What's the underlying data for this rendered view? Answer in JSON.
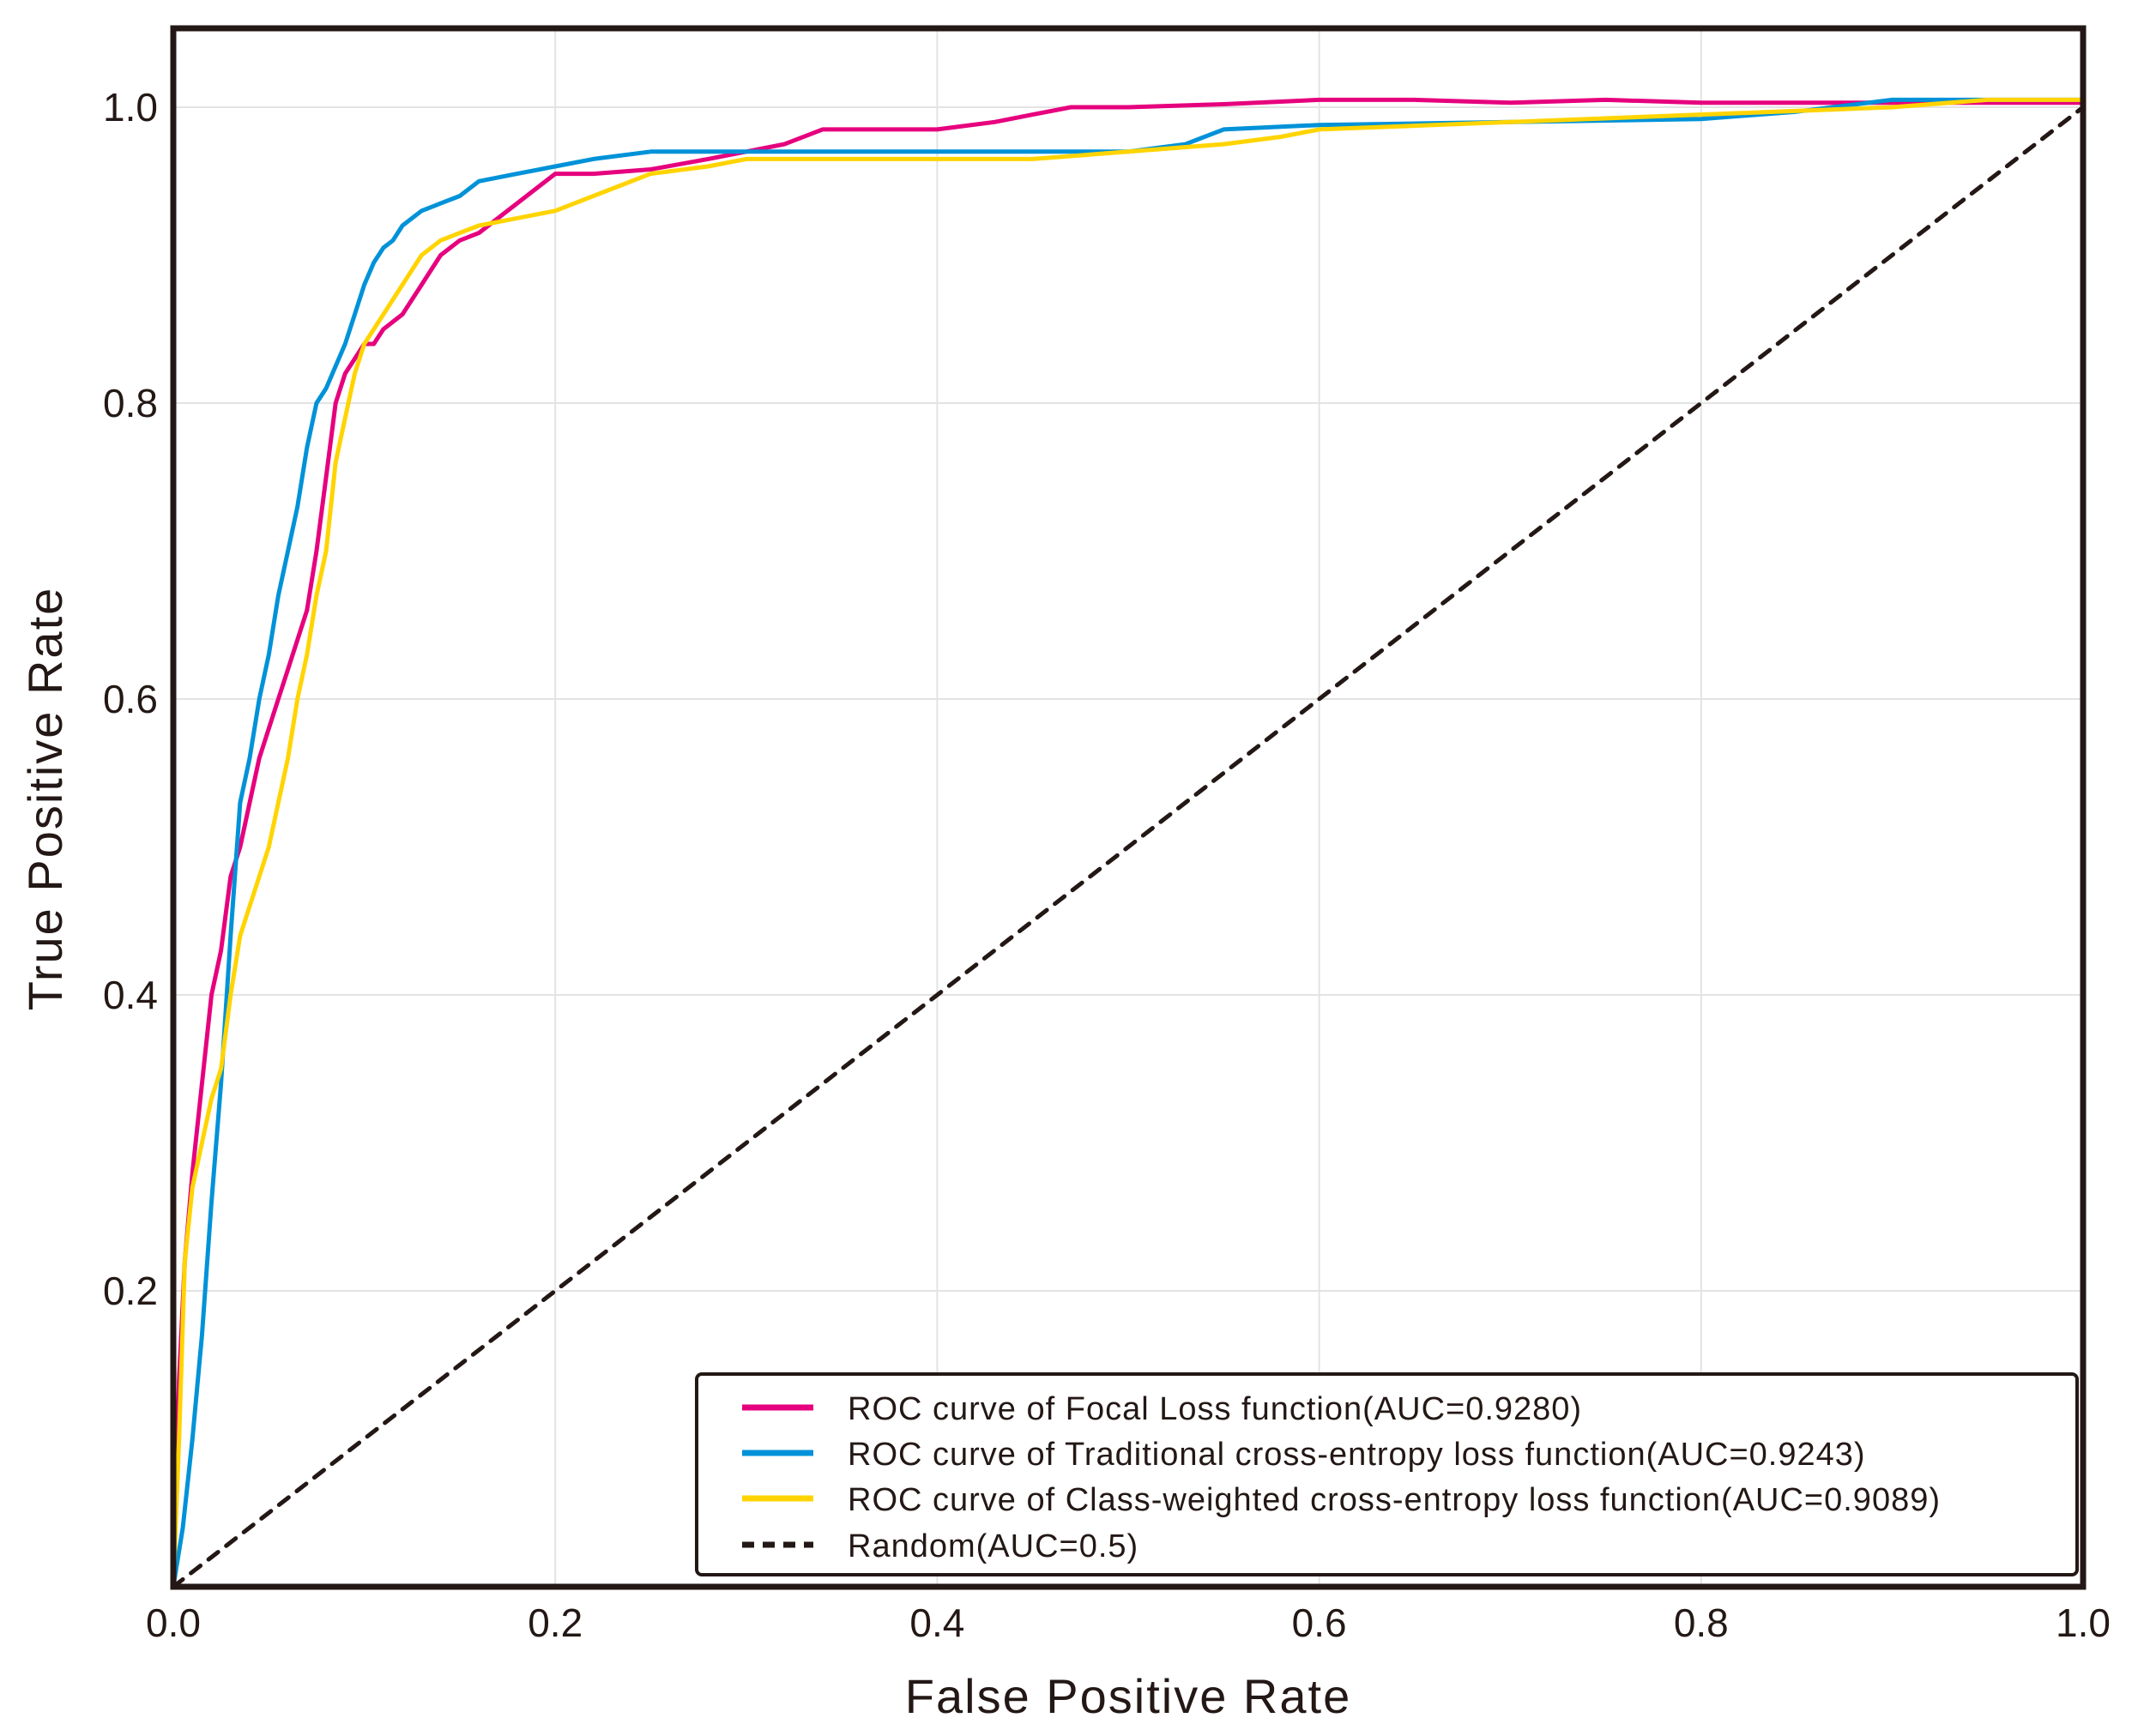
{
  "chart_data": {
    "type": "line",
    "title": "",
    "xlabel": "False Positive Rate",
    "ylabel": "True Positive Rate",
    "xlim": [
      0.0,
      1.0
    ],
    "ylim": [
      0.0,
      1.05
    ],
    "grid": true,
    "legend_position": "bottom-right",
    "x_ticks": [
      {
        "value": 0.0,
        "label": "0.0"
      },
      {
        "value": 0.2,
        "label": "0.2"
      },
      {
        "value": 0.4,
        "label": "0.4"
      },
      {
        "value": 0.6,
        "label": "0.6"
      },
      {
        "value": 0.8,
        "label": "0.8"
      },
      {
        "value": 1.0,
        "label": "1.0"
      }
    ],
    "y_ticks": [
      {
        "value": 0.2,
        "label": "0.2"
      },
      {
        "value": 0.4,
        "label": "0.4"
      },
      {
        "value": 0.6,
        "label": "0.6"
      },
      {
        "value": 0.8,
        "label": "0.8"
      },
      {
        "value": 1.0,
        "label": "1.0"
      }
    ],
    "series": [
      {
        "name": "ROC curve of Focal Loss function(AUC=0.9280)",
        "color": "#e6007e",
        "dashed": false,
        "x": [
          0.0,
          0.003,
          0.006,
          0.01,
          0.015,
          0.02,
          0.025,
          0.03,
          0.035,
          0.04,
          0.045,
          0.05,
          0.055,
          0.06,
          0.065,
          0.07,
          0.075,
          0.08,
          0.085,
          0.09,
          0.095,
          0.1,
          0.105,
          0.11,
          0.115,
          0.12,
          0.13,
          0.14,
          0.15,
          0.16,
          0.17,
          0.18,
          0.19,
          0.2,
          0.22,
          0.25,
          0.28,
          0.3,
          0.32,
          0.34,
          0.36,
          0.4,
          0.43,
          0.45,
          0.47,
          0.5,
          0.55,
          0.6,
          0.65,
          0.7,
          0.75,
          0.8,
          0.9,
          1.0
        ],
        "y": [
          0.0,
          0.14,
          0.22,
          0.28,
          0.34,
          0.4,
          0.43,
          0.48,
          0.5,
          0.53,
          0.56,
          0.58,
          0.6,
          0.62,
          0.64,
          0.66,
          0.7,
          0.75,
          0.8,
          0.82,
          0.83,
          0.84,
          0.84,
          0.85,
          0.855,
          0.86,
          0.88,
          0.9,
          0.91,
          0.915,
          0.925,
          0.935,
          0.945,
          0.955,
          0.955,
          0.958,
          0.965,
          0.97,
          0.975,
          0.985,
          0.985,
          0.985,
          0.99,
          0.995,
          1.0,
          1.0,
          1.002,
          1.005,
          1.005,
          1.003,
          1.005,
          1.003,
          1.003,
          1.003
        ]
      },
      {
        "name": "ROC curve of Traditional cross-entropy loss function(AUC=0.9243)",
        "color": "#0092d8",
        "dashed": false,
        "x": [
          0.0,
          0.005,
          0.01,
          0.015,
          0.02,
          0.025,
          0.03,
          0.035,
          0.04,
          0.045,
          0.05,
          0.055,
          0.06,
          0.065,
          0.07,
          0.075,
          0.08,
          0.085,
          0.09,
          0.095,
          0.1,
          0.105,
          0.11,
          0.115,
          0.12,
          0.13,
          0.14,
          0.15,
          0.16,
          0.18,
          0.2,
          0.22,
          0.25,
          0.3,
          0.4,
          0.5,
          0.53,
          0.55,
          0.6,
          0.7,
          0.8,
          0.85,
          0.9,
          1.0
        ],
        "y": [
          0.0,
          0.04,
          0.1,
          0.17,
          0.26,
          0.34,
          0.44,
          0.53,
          0.56,
          0.6,
          0.63,
          0.67,
          0.7,
          0.73,
          0.77,
          0.8,
          0.81,
          0.825,
          0.84,
          0.86,
          0.88,
          0.895,
          0.905,
          0.91,
          0.92,
          0.93,
          0.935,
          0.94,
          0.95,
          0.955,
          0.96,
          0.965,
          0.97,
          0.97,
          0.97,
          0.97,
          0.975,
          0.985,
          0.988,
          0.99,
          0.992,
          0.997,
          1.005,
          1.005
        ]
      },
      {
        "name": "ROC curve of Class-weighted cross-entropy loss function(AUC=0.9089)",
        "color": "#ffd400",
        "dashed": false,
        "x": [
          0.0,
          0.003,
          0.006,
          0.01,
          0.015,
          0.02,
          0.025,
          0.03,
          0.035,
          0.04,
          0.045,
          0.05,
          0.055,
          0.06,
          0.065,
          0.07,
          0.075,
          0.08,
          0.085,
          0.09,
          0.095,
          0.1,
          0.11,
          0.12,
          0.13,
          0.14,
          0.15,
          0.16,
          0.18,
          0.2,
          0.22,
          0.25,
          0.28,
          0.3,
          0.35,
          0.4,
          0.45,
          0.5,
          0.55,
          0.58,
          0.6,
          0.7,
          0.8,
          0.9,
          0.95,
          1.0
        ],
        "y": [
          0.0,
          0.1,
          0.22,
          0.27,
          0.3,
          0.33,
          0.35,
          0.4,
          0.44,
          0.46,
          0.48,
          0.5,
          0.53,
          0.56,
          0.6,
          0.63,
          0.67,
          0.7,
          0.76,
          0.79,
          0.82,
          0.84,
          0.86,
          0.88,
          0.9,
          0.91,
          0.915,
          0.92,
          0.925,
          0.93,
          0.94,
          0.955,
          0.96,
          0.965,
          0.965,
          0.965,
          0.965,
          0.97,
          0.975,
          0.98,
          0.985,
          0.99,
          0.995,
          1.0,
          1.005,
          1.005
        ]
      },
      {
        "name": "Random(AUC=0.5)",
        "color": "#231815",
        "dashed": true,
        "x": [
          0.0,
          1.0
        ],
        "y": [
          0.0,
          1.0
        ]
      }
    ]
  }
}
